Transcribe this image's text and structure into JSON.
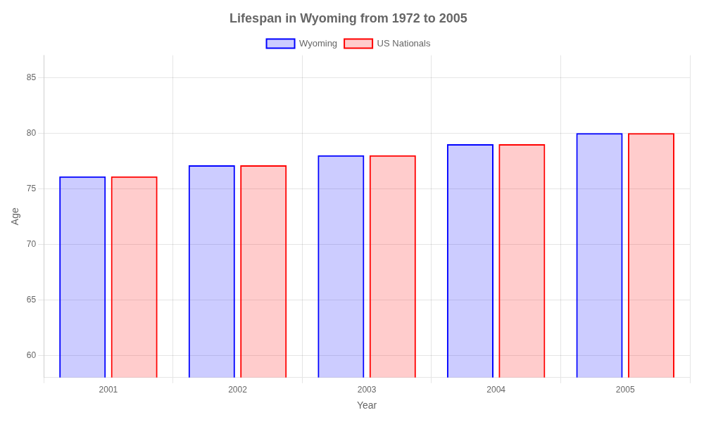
{
  "chart_data": {
    "type": "bar",
    "title": "Lifespan in Wyoming from 1972 to 2005",
    "x_label": "Year",
    "y_label": "Age",
    "categories": [
      "2001",
      "2002",
      "2003",
      "2004",
      "2005"
    ],
    "series": [
      {
        "name": "Wyoming",
        "color": "#0000ff",
        "values": [
          76.1,
          77.1,
          78.0,
          79.0,
          80.0
        ]
      },
      {
        "name": "US Nationals",
        "color": "#ff0000",
        "values": [
          76.1,
          77.1,
          78.0,
          79.0,
          80.0
        ]
      }
    ],
    "ylim": [
      58,
      87
    ],
    "yticks": [
      60,
      65,
      70,
      75,
      80,
      85
    ],
    "grid": true,
    "legend": "top"
  }
}
